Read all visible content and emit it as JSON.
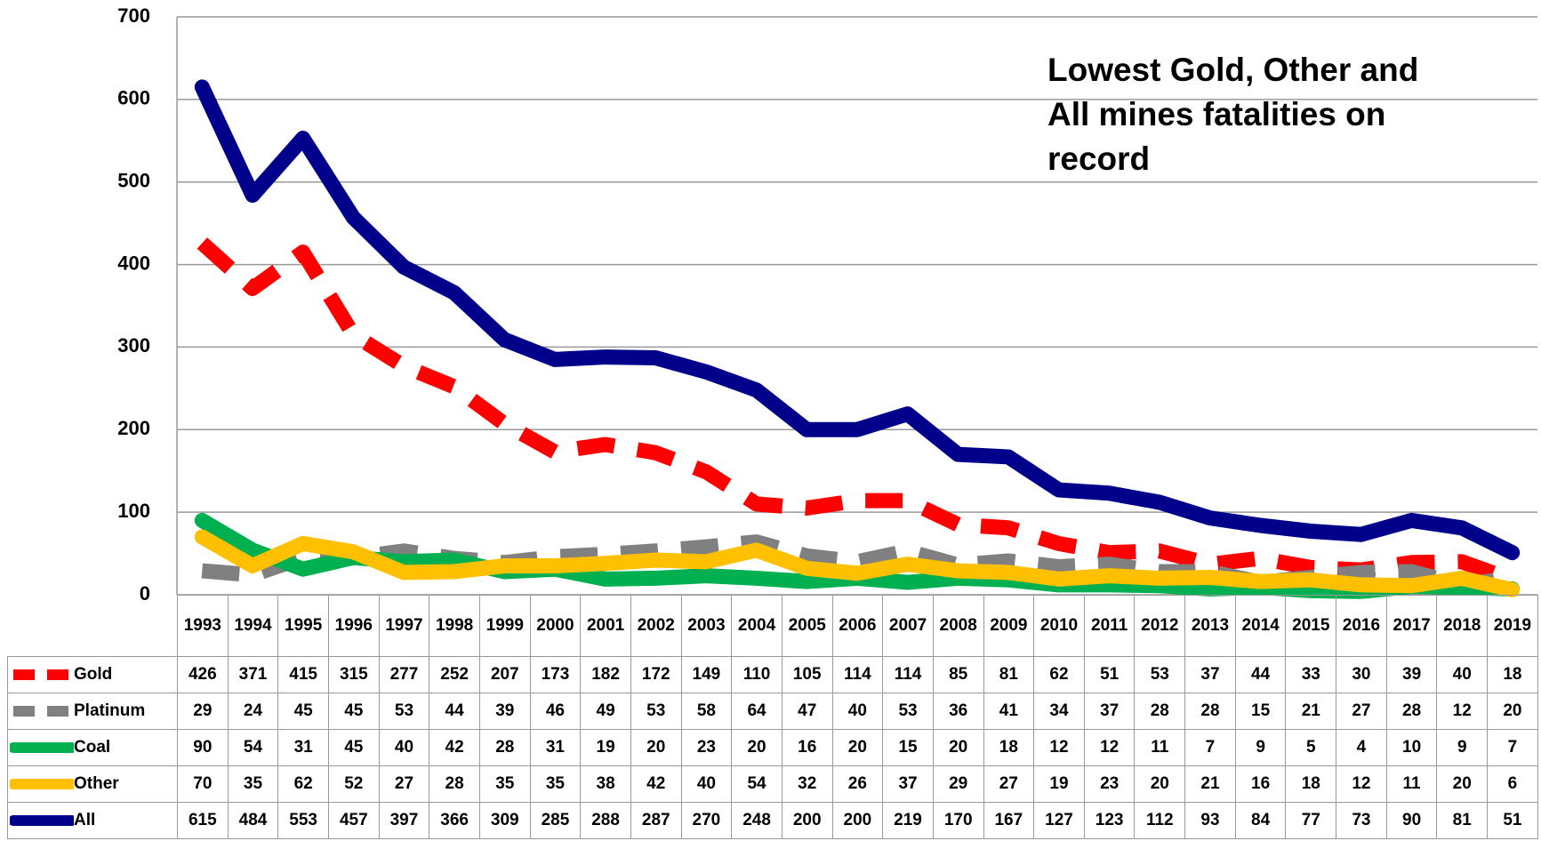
{
  "chart_data": {
    "type": "line",
    "annotation": "Lowest Gold, Other and All mines fatalities on record",
    "categories": [
      "1993",
      "1994",
      "1995",
      "1996",
      "1997",
      "1998",
      "1999",
      "2000",
      "2001",
      "2002",
      "2003",
      "2004",
      "2005",
      "2006",
      "2007",
      "2008",
      "2009",
      "2010",
      "2011",
      "2012",
      "2013",
      "2014",
      "2015",
      "2016",
      "2017",
      "2018",
      "2019"
    ],
    "series": [
      {
        "name": "Gold",
        "color": "#ff0000",
        "dashed": true,
        "values": [
          426,
          371,
          415,
          315,
          277,
          252,
          207,
          173,
          182,
          172,
          149,
          110,
          105,
          114,
          114,
          85,
          81,
          62,
          51,
          53,
          37,
          44,
          33,
          30,
          39,
          40,
          18
        ]
      },
      {
        "name": "Platinum",
        "color": "#808080",
        "dashed": true,
        "values": [
          29,
          24,
          45,
          45,
          53,
          44,
          39,
          46,
          49,
          53,
          58,
          64,
          47,
          40,
          53,
          36,
          41,
          34,
          37,
          28,
          28,
          15,
          21,
          27,
          28,
          12,
          20
        ]
      },
      {
        "name": "Coal",
        "color": "#00b050",
        "dashed": false,
        "values": [
          90,
          54,
          31,
          45,
          40,
          42,
          28,
          31,
          19,
          20,
          23,
          20,
          16,
          20,
          15,
          20,
          18,
          12,
          12,
          11,
          7,
          9,
          5,
          4,
          10,
          9,
          7
        ]
      },
      {
        "name": "Other",
        "color": "#ffc000",
        "dashed": false,
        "values": [
          70,
          35,
          62,
          52,
          27,
          28,
          35,
          35,
          38,
          42,
          40,
          54,
          32,
          26,
          37,
          29,
          27,
          19,
          23,
          20,
          21,
          16,
          18,
          12,
          11,
          20,
          6
        ]
      },
      {
        "name": "All",
        "color": "#00008b",
        "dashed": false,
        "values": [
          615,
          484,
          553,
          457,
          397,
          366,
          309,
          285,
          288,
          287,
          270,
          248,
          200,
          200,
          219,
          170,
          167,
          127,
          123,
          112,
          93,
          84,
          77,
          73,
          90,
          81,
          51
        ]
      }
    ],
    "ylim": [
      0,
      700
    ],
    "yticks": [
      0,
      100,
      200,
      300,
      400,
      500,
      600,
      700
    ],
    "grid": true
  }
}
